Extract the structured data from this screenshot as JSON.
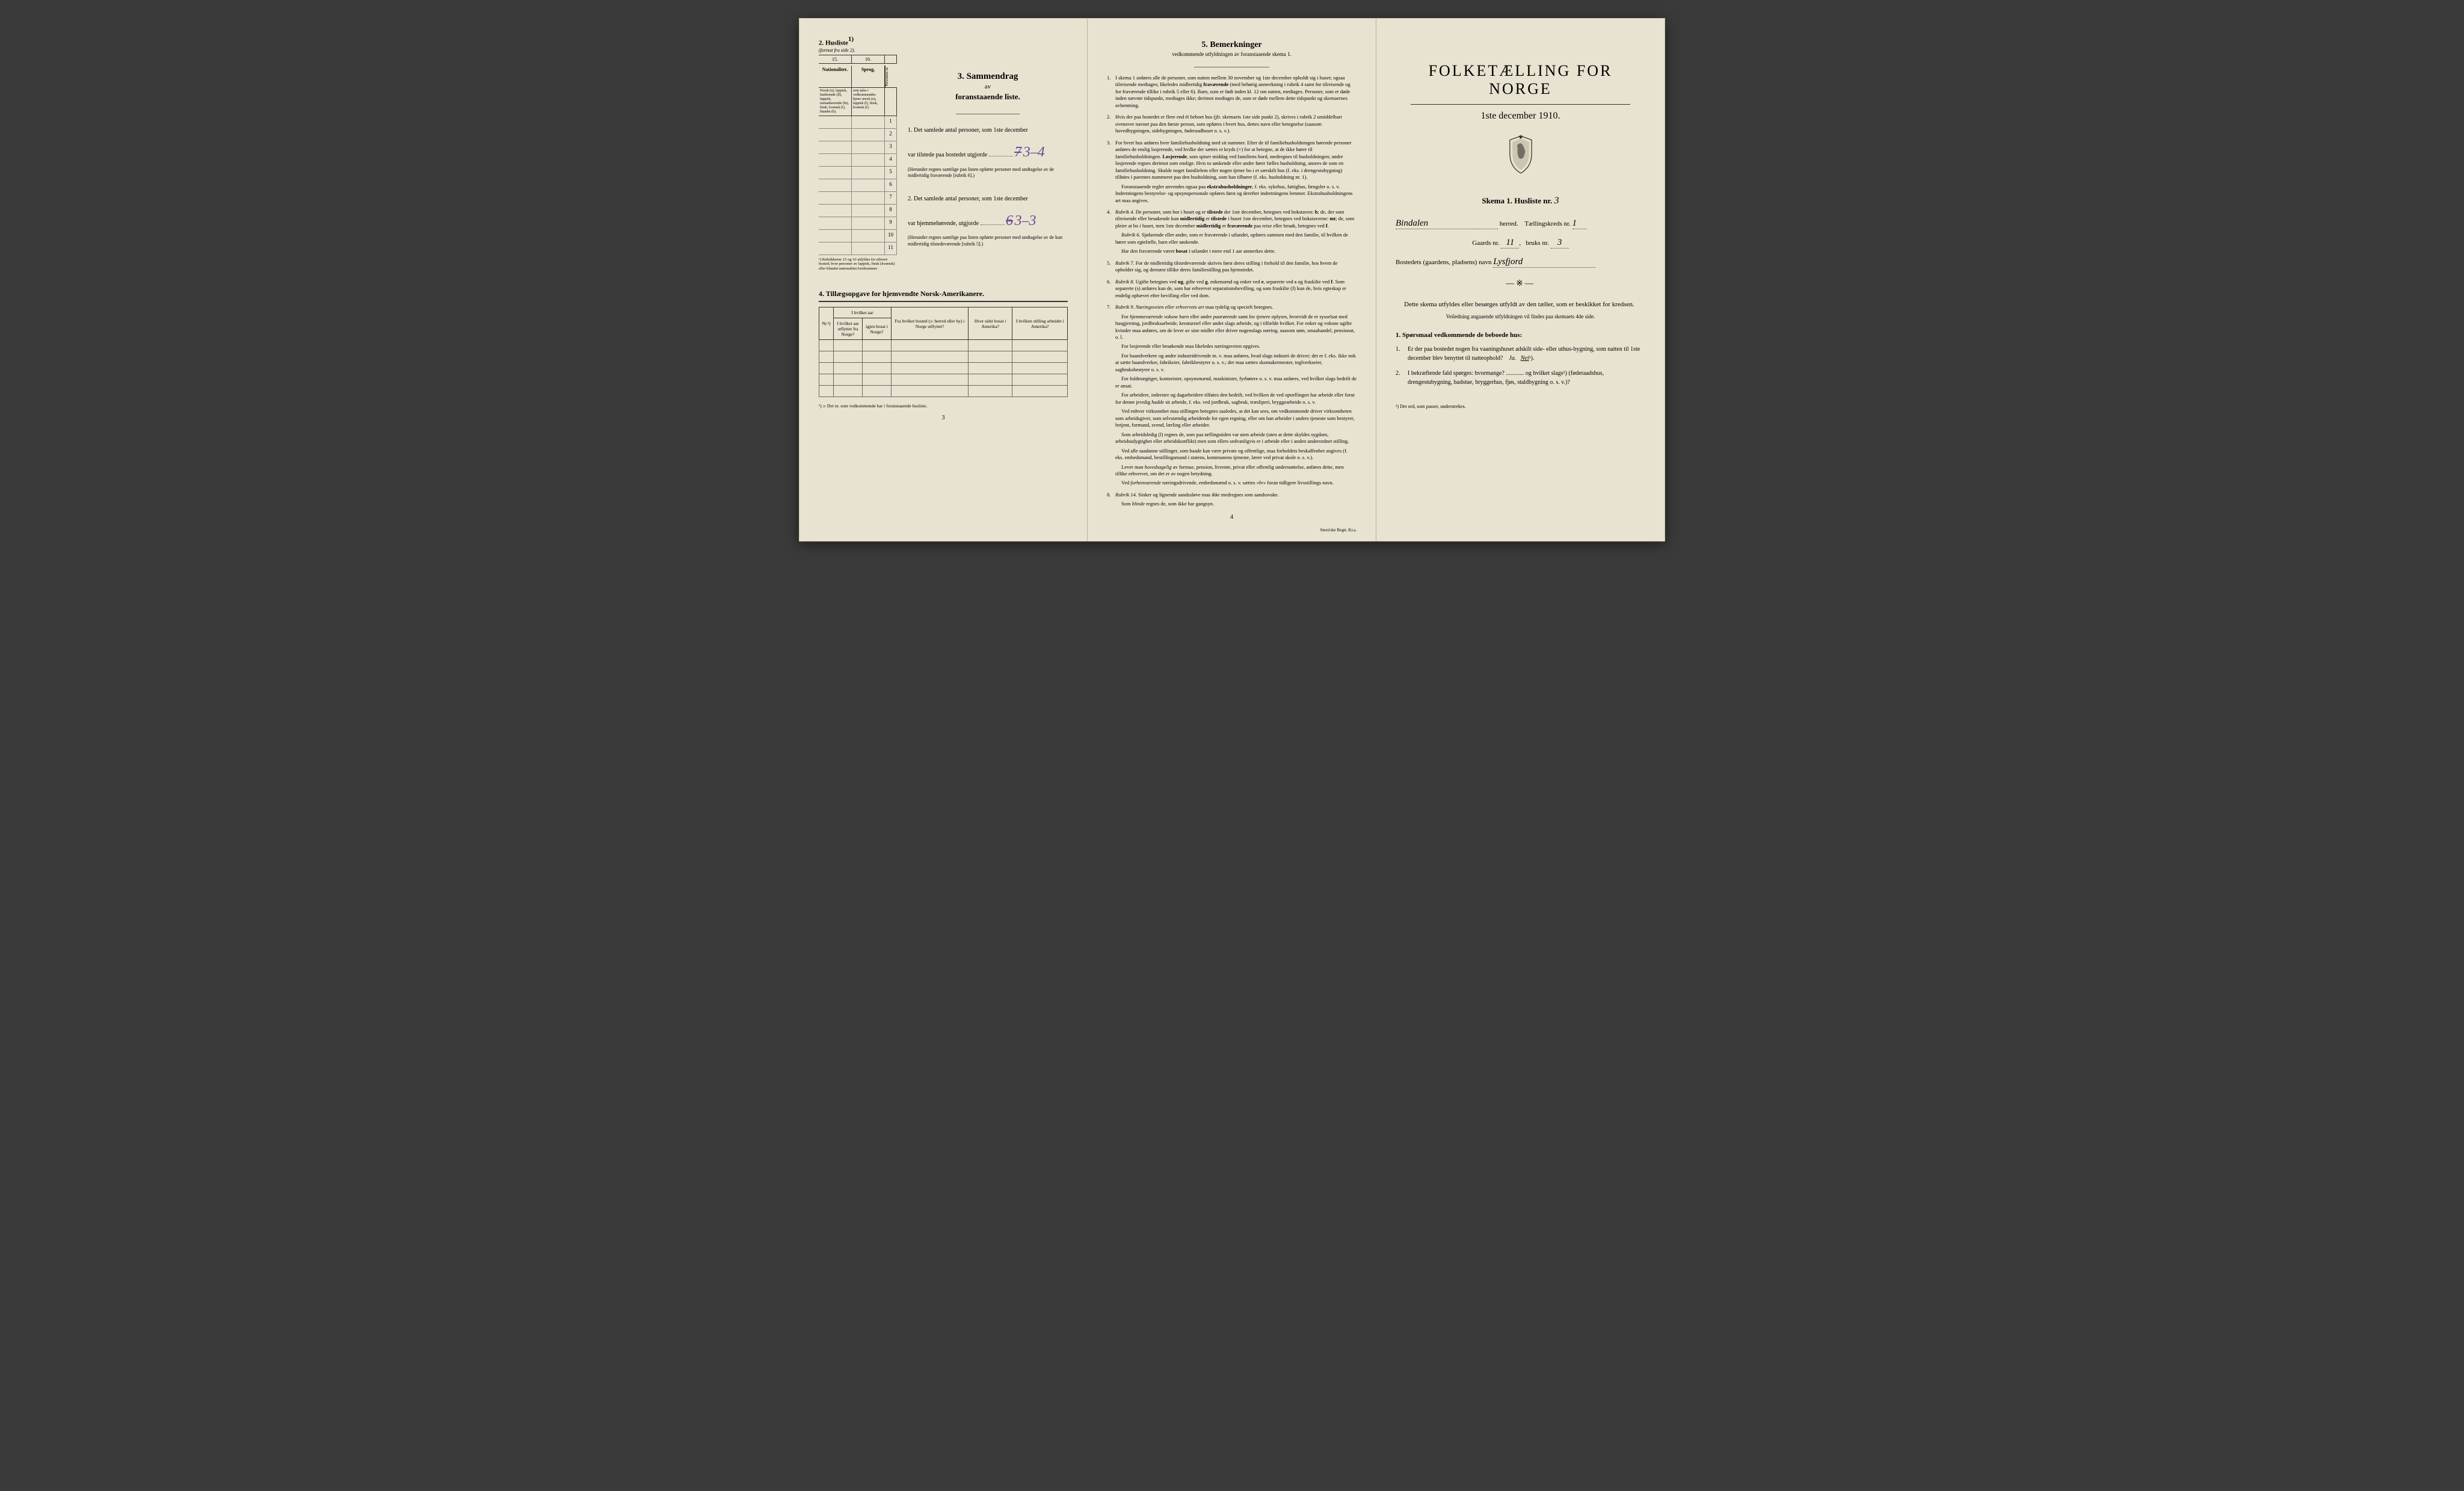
{
  "colors": {
    "paper": "#e8e2d0",
    "ink": "#222222",
    "purple_pencil": "#6a4a9a",
    "border": "#333333",
    "bg": "#3a3a3a"
  },
  "page3": {
    "husliste": {
      "header": "2.  Husliste",
      "header_sup": "1)",
      "sub": "(fortsat fra side 2).",
      "col15": "15.",
      "col16": "16.",
      "nat_label": "Nationalitet.",
      "spr_label": "Sprog,",
      "per_label": "Personens nr.",
      "nat_desc": "Norsk (n), lappisk, fastboende (lf), lappisk, nomadiserende (ln), finsk, kvænsk (f), blandet (b).",
      "spr_desc": "som tales i vedkommendes hjem: norsk (n), lappisk (l), finsk, kvænsk (f).",
      "row_nums": [
        "1",
        "2",
        "3",
        "4",
        "5",
        "6",
        "7",
        "8",
        "9",
        "10",
        "11"
      ],
      "footnote": "¹) Rubrikkerne 15 og 16 utfyldes for ethvert bosted, hvor personer av lappisk, finsk (kvænsk) eller blandet nationalitet forekommer."
    },
    "sammendrag": {
      "title": "3.  Sammendrag",
      "sub1": "av",
      "sub2": "foranstaaende liste.",
      "item1_label": "1.  Det samlede antal personer, som 1ste december",
      "item1_line": "var tilstede paa bostedet utgjorde",
      "item1_val_struck": "7",
      "item1_val": "3–4",
      "item1_note": "(Herunder regnes samtlige paa listen opførte personer med undtagelse av de midlertidig fraværende [rubrik 6].)",
      "item2_label": "2.  Det samlede antal personer, som 1ste december",
      "item2_line": "var hjemmehørende, utgjorde",
      "item2_val_struck": "6",
      "item2_val": "3–3",
      "item2_note": "(Herunder regnes samtlige paa listen opførte personer med undtagelse av de kun midlertidig tilstedeværende [rubrik 5].)"
    },
    "section4": {
      "title": "4.  Tillægsopgave for hjemvendte Norsk-Amerikanere.",
      "headers": {
        "nr": "Nr.²)",
        "h1": "I hvilket aar utflyttet fra Norge?",
        "h2": "igjen bosat i Norge?",
        "h3": "Fra hvilket bosted (ɔ: herred eller by) i Norge utflyttet?",
        "h4": "Hvor sidst bosat i Amerika?",
        "h5": "I hvilken stilling arbeidet i Amerika?"
      },
      "row_count": 5,
      "footnote": "²) ɔ: Det nr. som vedkommende har i foranstaaende husliste."
    },
    "page_number": "3"
  },
  "page4": {
    "title": "5.  Bemerkninger",
    "subtitle": "vedkommende utfyldningen av foranstaaende skema 1.",
    "items": [
      {
        "n": "1.",
        "text": "I skema 1 anføres alle de personer, som natten mellem 30 november og 1ste december opholdt sig i huset; ogsaa tilreisende medtages; likeledes midlertidig <b>fraværende</b> (med behørig anmerkning i rubrik 4 samt for tilreisende og for fraværende tillike i rubrik 5 eller 6). Barn, som er født inden kl. 12 om natten, medtages. Personer, som er døde inden nævnte tidspunkt, medtages ikke; derimot medtages de, som er døde mellem dette tidspunkt og skemaernes avhentning."
      },
      {
        "n": "2.",
        "text": "Hvis der paa bostedet er flere end ét beboet hus (jfr. skemaets 1ste side punkt 2), skrives i rubrik 2 umiddelbart ovenover navnet paa den første person, som opføres i hvert hus, dettes navn eller betegnelse (saasom hovedbygningen, sidebygningen, føderaadhuset o. s. v.)."
      },
      {
        "n": "3.",
        "text": "For hvert hus anføres hver familiehusholdning med sit nummer. Efter de til familiehusholdningen hørende personer anføres de enslig losjerende, ved hvilke der sættes et kryds (×) for at betegne, at de ikke hører til familiehusholdningen. <b>Losjerende</b>, som spiser middag ved familiens bord, medregnes til husholdningen; andre losjerende regnes derimot som enslige. Hvis to søskende eller andre fører fælles husholdning, ansees de som en familiehusholdning. Skulde noget familielem eller nogen tjener bo i et særskilt hus (f. eks. i drengestubygning) tilføies i parentes nummeret paa den husholdning, som han tilhører (f. eks. husholdning nr. 1).",
        "paras": [
          "Foranstaaende regler anvendes ogsaa paa <b>ekstrahusholdninger</b>, f. eks. sykehus, fattighus, fængsler o. s. v. Indretningens bestyrelse- og opsynspersonale opføres først og derefter indretningens lemmer. Ekstrahusholdningens art maa angives."
        ]
      },
      {
        "n": "4.",
        "text": "<i>Rubrik 4.</i> De personer, som bor i huset og er <b>tilstede</b> der 1ste december, betegnes ved bokstaven: <b>b</b>; de, der som tilreisende eller besøkende kun <b>midlertidig</b> er <b>tilstede</b> i huset 1ste december, betegnes ved bokstaverne: <b>mt</b>; de, som pleier at bo i huset, men 1ste december <b>midlertidig</b> er <b>fraværende</b> paa reise eller besøk, betegnes ved <b>f</b>.",
        "paras": [
          "<i>Rubrik 6.</i> Sjøfarende eller andre, som er fraværende i utlandet, opføres sammen med den familie, til hvilken de hører som egtefælle, barn eller søskende.",
          "Har den fraværende været <b>bosat</b> i utlandet i mere end 1 aar anmerkes dette."
        ]
      },
      {
        "n": "5.",
        "text": "<i>Rubrik 7.</i> For de midlertidig tilstedeværende skrives først deres stilling i forhold til den familie, hos hvem de opholder sig, og dernæst tillike deres familiestilling paa hjemstedet."
      },
      {
        "n": "6.",
        "text": "<i>Rubrik 8.</i> Ugifte betegnes ved <b>ug</b>, gifte ved <b>g</b>, enkemænd og enker ved <b>e</b>, separerte ved <b>s</b> og fraskilte ved <b>f</b>. Som separerte (s) anføres kun de, som har erhvervet separationsbevilling, og som fraskilte (f) kun de, hvis egteskap er endelig ophævet efter bevilling eller ved dom."
      },
      {
        "n": "7.",
        "text": "<i>Rubrik 9.</i> <i>Næringsveien eller erhvervets art</i> maa tydelig og specielt betegnes.",
        "paras": [
          "For <i>hjemmeværende voksne barn</i> eller andre <i>paarørende</i> samt for <i>tjenere</i> oplyses, hvorvidt de er sysselsat med husgjerning, jordbruksarbeide, kreaturstel eller andet slags arbeide, og i tilfælde hvilket. For enker og voksne ugifte kvinder maa anføres, om de lever av sine midler eller driver nogenslags næring, saasom søm, smaahandel, pensionat, o. l.",
          "For losjerende eller besøkende maa likeledes næringsveien opgives.",
          "For haandverkere og andre industridrivende m. v. maa anføres, hvad slags industri de driver; det er f. eks. ikke nok at sætte haandverker, fabrikeier, fabrikbestyrer o. s. v.; der maa sættes skomakermester, teglverkseier, sagbruksbestyrer o. s. v.",
          "For fuldmægtiger, kontorister, opsynsmænd, maskinister, fyrbøtere o. s. v. maa anføres, ved hvilket slags bedrift de er ansat.",
          "For arbeidere, inderster og dagarbeidere tilføies den bedrift, ved hvilken de ved optællingen har arbeide eller forut for denne jevnlig <i>hadde</i> sit arbeide, f. eks. ved jordbruk, sagbruk, træsliperi, bryggearbeide o. s. v.",
          "Ved enhver virksomhet maa stillingen betegnes saaledes, at det kan sees, om vedkommende driver virksomheten som arbeidsgiver, som selvstændig arbeidende for egen regning, eller om han arbeider i andres tjeneste som bestyrer, betjent, formand, svend, lærling eller arbeider.",
          "Som arbeidsledig (l) regnes de, som paa tællingstiden var uten arbeide (uten at dette skyldes sygdom, arbeidsudygtighet eller arbeidskonflikt) men som ellers sedvanligvis er i arbeide eller i anden underordnet stilling.",
          "Ved alle saadanne stillinger, som baade kan være private og offentlige, maa forholdets beskaffenhet angives (f. eks. embedsmand, bestillingsmand i statens, kommunens tjeneste, lærer ved privat skole o. s. v.).",
          "Lever man <i>hovedsagelig</i> av formue, pension, livrente, privat eller offentlig understøttelse, anføres dette, men tillike erhvervet, om det er av nogen betydning.",
          "Ved <i>forhenværende</i> næringsdrivende, embedsmænd o. s. v. sættes «fv» foran tidligere livsstillings navn."
        ]
      },
      {
        "n": "8.",
        "text": "<i>Rubrik 14.</i> Sinker og lignende aandssløve maa <i>ikke</i> medregnes som aandssvake.",
        "paras": [
          "Som <i>blinde</i> regnes de, som ikke har gangsyn."
        ]
      }
    ],
    "printer": "Steen'ske Bogtr. Kr.a.",
    "page_number": "4"
  },
  "page1": {
    "main_title": "FOLKETÆLLING FOR NORGE",
    "date": "1ste december 1910.",
    "skema_label": "Skema 1.  Husliste nr.",
    "skema_val": "3",
    "herred_val": "Bindalen",
    "herred_label": "herred.",
    "tkreds_label": "Tællingskreds nr.",
    "tkreds_val": "1",
    "gaards_label": "Gaards nr.",
    "gaards_val": "11",
    "bruks_label": "bruks nr.",
    "bruks_val": "3",
    "bosted_label": "Bostedets (gaardens, pladsens) navn",
    "bosted_val": "Lysfjord",
    "intro": "Dette skema utfyldes eller besørges utfyldt av den tæller, som er beskikket for kredsen.",
    "intro_sub": "Veiledning angaaende utfyldningen vil findes paa skemaets 4de side.",
    "q_title": "1. Spørsmaal vedkommende de beboede hus:",
    "q1_num": "1.",
    "q1": "Er der paa bostedet nogen fra vaaningshuset adskilt side- eller uthus-bygning, som natten til 1ste december blev benyttet til natteophold?",
    "q1_ja": "Ja.",
    "q1_nei": "Nei",
    "q1_sup": "¹).",
    "q2_num": "2.",
    "q2": "I bekræftende fald spørges: hvormange? ............ og hvilket slags¹) (føderaadshus, drengestubygning, badstue, bryggerhus, fjøs, staldbygning o. s. v.)?",
    "footnote": "¹) Det ord, som passer, understrekes."
  }
}
